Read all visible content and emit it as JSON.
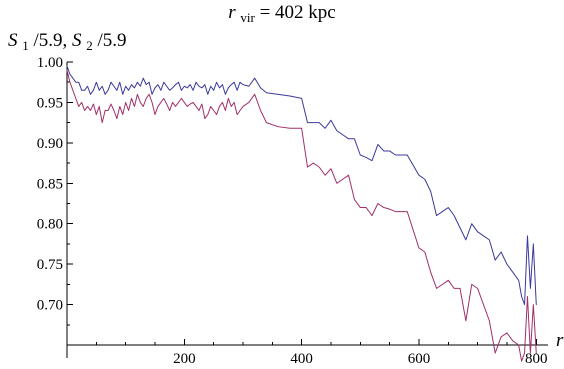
{
  "chart_data": {
    "type": "line",
    "title": "r_vir = 402 kpc",
    "title_parts": {
      "main": "r",
      "subscript": "vir",
      "rest": " = 402 kpc"
    },
    "ylabel": "S1/5.9, S2/5.9",
    "ylabel_parts": [
      {
        "main": "S",
        "sub": "1",
        "rest": "/5.9, "
      },
      {
        "main": "S",
        "sub": "2",
        "rest": "/5.9"
      }
    ],
    "xlabel": "r",
    "x_ticks": [
      "200",
      "400",
      "600",
      "800"
    ],
    "y_ticks": [
      "1.00",
      "0.95",
      "0.90",
      "0.85",
      "0.80",
      "0.75",
      "0.70"
    ],
    "xlim": [
      0,
      820
    ],
    "ylim": [
      0.65,
      1.0
    ],
    "grid": false,
    "series": [
      {
        "color": "#3a3a9c",
        "points": [
          [
            0,
            0.995
          ],
          [
            5,
            0.985
          ],
          [
            10,
            0.98
          ],
          [
            15,
            0.975
          ],
          [
            20,
            0.975
          ],
          [
            25,
            0.965
          ],
          [
            30,
            0.965
          ],
          [
            35,
            0.97
          ],
          [
            40,
            0.96
          ],
          [
            45,
            0.965
          ],
          [
            50,
            0.975
          ],
          [
            55,
            0.965
          ],
          [
            60,
            0.97
          ],
          [
            65,
            0.96
          ],
          [
            70,
            0.965
          ],
          [
            75,
            0.975
          ],
          [
            80,
            0.97
          ],
          [
            85,
            0.965
          ],
          [
            90,
            0.975
          ],
          [
            95,
            0.96
          ],
          [
            100,
            0.97
          ],
          [
            105,
            0.965
          ],
          [
            110,
            0.972
          ],
          [
            115,
            0.968
          ],
          [
            120,
            0.975
          ],
          [
            125,
            0.97
          ],
          [
            130,
            0.98
          ],
          [
            135,
            0.972
          ],
          [
            140,
            0.975
          ],
          [
            145,
            0.96
          ],
          [
            150,
            0.968
          ],
          [
            155,
            0.972
          ],
          [
            160,
            0.965
          ],
          [
            165,
            0.975
          ],
          [
            170,
            0.97
          ],
          [
            175,
            0.965
          ],
          [
            180,
            0.968
          ],
          [
            185,
            0.972
          ],
          [
            190,
            0.975
          ],
          [
            195,
            0.965
          ],
          [
            200,
            0.97
          ],
          [
            205,
            0.968
          ],
          [
            210,
            0.972
          ],
          [
            215,
            0.965
          ],
          [
            220,
            0.975
          ],
          [
            225,
            0.97
          ],
          [
            230,
            0.968
          ],
          [
            235,
            0.972
          ],
          [
            240,
            0.96
          ],
          [
            245,
            0.97
          ],
          [
            250,
            0.965
          ],
          [
            255,
            0.975
          ],
          [
            260,
            0.968
          ],
          [
            265,
            0.972
          ],
          [
            270,
            0.96
          ],
          [
            275,
            0.968
          ],
          [
            280,
            0.972
          ],
          [
            285,
            0.975
          ],
          [
            290,
            0.965
          ],
          [
            295,
            0.975
          ],
          [
            300,
            0.972
          ],
          [
            310,
            0.97
          ],
          [
            320,
            0.98
          ],
          [
            330,
            0.968
          ],
          [
            340,
            0.962
          ],
          [
            360,
            0.96
          ],
          [
            380,
            0.958
          ],
          [
            400,
            0.955
          ],
          [
            410,
            0.925
          ],
          [
            420,
            0.925
          ],
          [
            430,
            0.925
          ],
          [
            440,
            0.918
          ],
          [
            450,
            0.928
          ],
          [
            460,
            0.915
          ],
          [
            470,
            0.91
          ],
          [
            480,
            0.905
          ],
          [
            490,
            0.905
          ],
          [
            500,
            0.885
          ],
          [
            510,
            0.882
          ],
          [
            520,
            0.878
          ],
          [
            530,
            0.898
          ],
          [
            540,
            0.89
          ],
          [
            550,
            0.89
          ],
          [
            560,
            0.885
          ],
          [
            580,
            0.885
          ],
          [
            600,
            0.86
          ],
          [
            610,
            0.855
          ],
          [
            620,
            0.84
          ],
          [
            630,
            0.81
          ],
          [
            640,
            0.815
          ],
          [
            650,
            0.82
          ],
          [
            660,
            0.81
          ],
          [
            670,
            0.795
          ],
          [
            680,
            0.78
          ],
          [
            690,
            0.8
          ],
          [
            700,
            0.79
          ],
          [
            710,
            0.785
          ],
          [
            720,
            0.78
          ],
          [
            730,
            0.755
          ],
          [
            740,
            0.765
          ],
          [
            750,
            0.75
          ],
          [
            760,
            0.74
          ],
          [
            770,
            0.73
          ],
          [
            775,
            0.71
          ],
          [
            780,
            0.7
          ],
          [
            785,
            0.785
          ],
          [
            790,
            0.72
          ],
          [
            795,
            0.775
          ],
          [
            800,
            0.7
          ]
        ]
      },
      {
        "color": "#a0306a",
        "points": [
          [
            0,
            0.99
          ],
          [
            5,
            0.975
          ],
          [
            10,
            0.965
          ],
          [
            15,
            0.955
          ],
          [
            20,
            0.945
          ],
          [
            25,
            0.95
          ],
          [
            30,
            0.94
          ],
          [
            35,
            0.945
          ],
          [
            40,
            0.94
          ],
          [
            45,
            0.948
          ],
          [
            50,
            0.935
          ],
          [
            55,
            0.945
          ],
          [
            60,
            0.925
          ],
          [
            65,
            0.94
          ],
          [
            70,
            0.94
          ],
          [
            75,
            0.948
          ],
          [
            80,
            0.94
          ],
          [
            85,
            0.93
          ],
          [
            90,
            0.945
          ],
          [
            95,
            0.935
          ],
          [
            100,
            0.95
          ],
          [
            105,
            0.94
          ],
          [
            110,
            0.955
          ],
          [
            115,
            0.945
          ],
          [
            120,
            0.96
          ],
          [
            125,
            0.95
          ],
          [
            130,
            0.945
          ],
          [
            135,
            0.955
          ],
          [
            140,
            0.96
          ],
          [
            145,
            0.95
          ],
          [
            150,
            0.935
          ],
          [
            155,
            0.945
          ],
          [
            160,
            0.95
          ],
          [
            165,
            0.955
          ],
          [
            170,
            0.948
          ],
          [
            175,
            0.94
          ],
          [
            180,
            0.95
          ],
          [
            185,
            0.945
          ],
          [
            190,
            0.95
          ],
          [
            195,
            0.955
          ],
          [
            200,
            0.95
          ],
          [
            205,
            0.945
          ],
          [
            210,
            0.948
          ],
          [
            215,
            0.95
          ],
          [
            220,
            0.945
          ],
          [
            225,
            0.94
          ],
          [
            230,
            0.948
          ],
          [
            235,
            0.93
          ],
          [
            240,
            0.935
          ],
          [
            245,
            0.945
          ],
          [
            250,
            0.94
          ],
          [
            255,
            0.935
          ],
          [
            260,
            0.945
          ],
          [
            265,
            0.95
          ],
          [
            270,
            0.94
          ],
          [
            275,
            0.955
          ],
          [
            280,
            0.945
          ],
          [
            285,
            0.95
          ],
          [
            290,
            0.935
          ],
          [
            295,
            0.94
          ],
          [
            300,
            0.945
          ],
          [
            310,
            0.95
          ],
          [
            320,
            0.96
          ],
          [
            330,
            0.94
          ],
          [
            340,
            0.925
          ],
          [
            360,
            0.92
          ],
          [
            380,
            0.918
          ],
          [
            400,
            0.918
          ],
          [
            410,
            0.87
          ],
          [
            420,
            0.875
          ],
          [
            430,
            0.87
          ],
          [
            440,
            0.86
          ],
          [
            450,
            0.868
          ],
          [
            460,
            0.85
          ],
          [
            470,
            0.855
          ],
          [
            480,
            0.86
          ],
          [
            490,
            0.83
          ],
          [
            500,
            0.82
          ],
          [
            510,
            0.82
          ],
          [
            520,
            0.81
          ],
          [
            530,
            0.825
          ],
          [
            540,
            0.82
          ],
          [
            550,
            0.818
          ],
          [
            560,
            0.815
          ],
          [
            580,
            0.815
          ],
          [
            600,
            0.77
          ],
          [
            610,
            0.765
          ],
          [
            620,
            0.74
          ],
          [
            630,
            0.72
          ],
          [
            640,
            0.725
          ],
          [
            650,
            0.73
          ],
          [
            660,
            0.72
          ],
          [
            670,
            0.72
          ],
          [
            680,
            0.68
          ],
          [
            690,
            0.725
          ],
          [
            700,
            0.72
          ],
          [
            710,
            0.7
          ],
          [
            720,
            0.68
          ],
          [
            730,
            0.64
          ],
          [
            740,
            0.66
          ],
          [
            750,
            0.665
          ],
          [
            760,
            0.655
          ],
          [
            770,
            0.65
          ],
          [
            775,
            0.63
          ],
          [
            780,
            0.64
          ],
          [
            785,
            0.71
          ],
          [
            790,
            0.64
          ],
          [
            795,
            0.7
          ],
          [
            800,
            0.64
          ]
        ]
      }
    ]
  }
}
